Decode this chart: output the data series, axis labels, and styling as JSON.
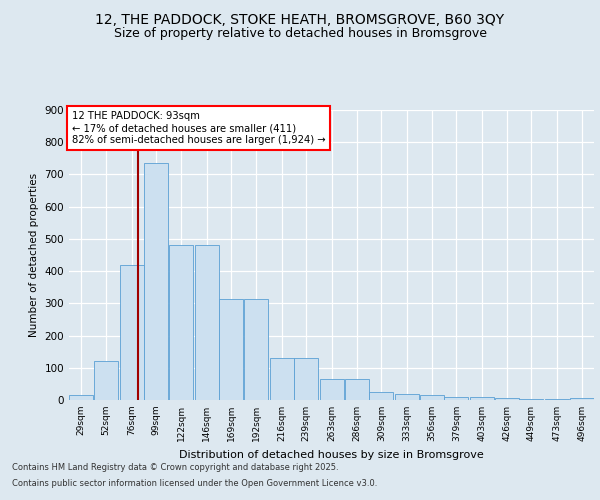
{
  "title_line1": "12, THE PADDOCK, STOKE HEATH, BROMSGROVE, B60 3QY",
  "title_line2": "Size of property relative to detached houses in Bromsgrove",
  "xlabel": "Distribution of detached houses by size in Bromsgrove",
  "ylabel": "Number of detached properties",
  "footer_line1": "Contains HM Land Registry data © Crown copyright and database right 2025.",
  "footer_line2": "Contains public sector information licensed under the Open Government Licence v3.0.",
  "annotation_line1": "12 THE PADDOCK: 93sqm",
  "annotation_line2": "← 17% of detached houses are smaller (411)",
  "annotation_line3": "82% of semi-detached houses are larger (1,924) →",
  "bar_color": "#cce0f0",
  "bar_edge_color": "#5a9fd4",
  "vline_color": "#a00000",
  "vline_x": 93,
  "categories": [
    "29sqm",
    "52sqm",
    "76sqm",
    "99sqm",
    "122sqm",
    "146sqm",
    "169sqm",
    "192sqm",
    "216sqm",
    "239sqm",
    "263sqm",
    "286sqm",
    "309sqm",
    "333sqm",
    "356sqm",
    "379sqm",
    "403sqm",
    "426sqm",
    "449sqm",
    "473sqm",
    "496sqm"
  ],
  "bin_edges": [
    29,
    52,
    76,
    99,
    122,
    146,
    169,
    192,
    216,
    239,
    263,
    286,
    309,
    333,
    356,
    379,
    403,
    426,
    449,
    473,
    496
  ],
  "bin_width": 23,
  "values": [
    15,
    120,
    420,
    735,
    480,
    480,
    315,
    315,
    130,
    130,
    65,
    65,
    25,
    20,
    15,
    10,
    8,
    5,
    3,
    3,
    5
  ],
  "ylim": [
    0,
    900
  ],
  "yticks": [
    0,
    100,
    200,
    300,
    400,
    500,
    600,
    700,
    800,
    900
  ],
  "background_color": "#dde8f0",
  "plot_bg_color": "#dde8f0",
  "grid_color": "#ffffff",
  "title_fontsize": 10,
  "subtitle_fontsize": 9
}
